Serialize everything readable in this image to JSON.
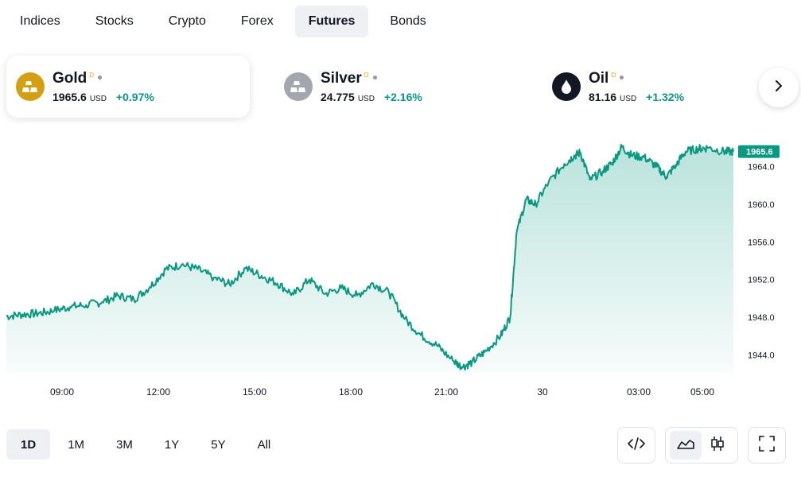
{
  "tabs": [
    {
      "label": "Indices",
      "active": false
    },
    {
      "label": "Stocks",
      "active": false
    },
    {
      "label": "Crypto",
      "active": false
    },
    {
      "label": "Forex",
      "active": false
    },
    {
      "label": "Futures",
      "active": true
    },
    {
      "label": "Bonds",
      "active": false
    }
  ],
  "cards": [
    {
      "name": "Gold",
      "flag": "D",
      "price": "1965.6",
      "unit": "USD",
      "change": "+0.97%",
      "icon": "gold-bars-icon",
      "icon_color": "#d4a012"
    },
    {
      "name": "Silver",
      "flag": "D",
      "price": "24.775",
      "unit": "USD",
      "change": "+2.16%",
      "icon": "silver-bars-icon",
      "icon_color": "#a3a6ad"
    },
    {
      "name": "Oil",
      "flag": "D",
      "price": "81.16",
      "unit": "USD",
      "change": "+1.32%",
      "icon": "oil-drop-icon",
      "icon_color": "#131722"
    }
  ],
  "colors": {
    "accent": "#089981",
    "positive": "#089981"
  },
  "chart_data": {
    "type": "area",
    "y_ticks": [
      "1964.0",
      "1960.0",
      "1956.0",
      "1952.0",
      "1948.0",
      "1944.0"
    ],
    "x_ticks": [
      "09:00",
      "12:00",
      "15:00",
      "18:00",
      "21:00",
      "30",
      "03:00",
      "05:00"
    ],
    "last_label": "1965.6",
    "ylim": [
      1942.0,
      1966.5
    ],
    "series": [
      {
        "points": [
          [
            0,
            1948.1
          ],
          [
            0.5,
            1948.3
          ],
          [
            1,
            1948.4
          ],
          [
            1.5,
            1948.7
          ],
          [
            2,
            1949.1
          ],
          [
            2.5,
            1949.3
          ],
          [
            3,
            1949.6
          ],
          [
            3.5,
            1950.3
          ],
          [
            4,
            1949.9
          ],
          [
            4.5,
            1951.2
          ],
          [
            5,
            1953.1
          ],
          [
            5.5,
            1953.6
          ],
          [
            6,
            1953.1
          ],
          [
            6.5,
            1952.2
          ],
          [
            7,
            1951.5
          ],
          [
            7.5,
            1953.2
          ],
          [
            8,
            1952.4
          ],
          [
            8.5,
            1951.6
          ],
          [
            9,
            1950.4
          ],
          [
            9.5,
            1952.0
          ],
          [
            10,
            1950.5
          ],
          [
            10.5,
            1951.1
          ],
          [
            11,
            1950.3
          ],
          [
            11.5,
            1951.6
          ],
          [
            12,
            1950.6
          ],
          [
            12.5,
            1947.8
          ],
          [
            13,
            1946.1
          ],
          [
            13.5,
            1945.0
          ],
          [
            14,
            1943.4
          ],
          [
            14.3,
            1942.7
          ],
          [
            14.6,
            1943.2
          ],
          [
            15,
            1944.3
          ],
          [
            15.5,
            1946.0
          ],
          [
            15.8,
            1948.0
          ],
          [
            16,
            1957.0
          ],
          [
            16.3,
            1960.5
          ],
          [
            16.6,
            1960.0
          ],
          [
            17,
            1962.3
          ],
          [
            17.5,
            1964.3
          ],
          [
            17.8,
            1965.1
          ],
          [
            18,
            1965.5
          ],
          [
            18.3,
            1962.6
          ],
          [
            18.7,
            1963.5
          ],
          [
            19,
            1964.4
          ],
          [
            19.3,
            1966.1
          ],
          [
            19.6,
            1965.2
          ],
          [
            20,
            1965.0
          ],
          [
            20.4,
            1964.0
          ],
          [
            20.7,
            1962.9
          ],
          [
            21,
            1964.2
          ],
          [
            21.3,
            1965.6
          ],
          [
            21.7,
            1965.9
          ],
          [
            22,
            1966.0
          ],
          [
            22.5,
            1965.6
          ],
          [
            22.8,
            1965.6
          ]
        ]
      }
    ]
  },
  "ranges": [
    {
      "label": "1D",
      "active": true
    },
    {
      "label": "1M",
      "active": false
    },
    {
      "label": "3M",
      "active": false
    },
    {
      "label": "1Y",
      "active": false
    },
    {
      "label": "5Y",
      "active": false
    },
    {
      "label": "All",
      "active": false
    }
  ]
}
